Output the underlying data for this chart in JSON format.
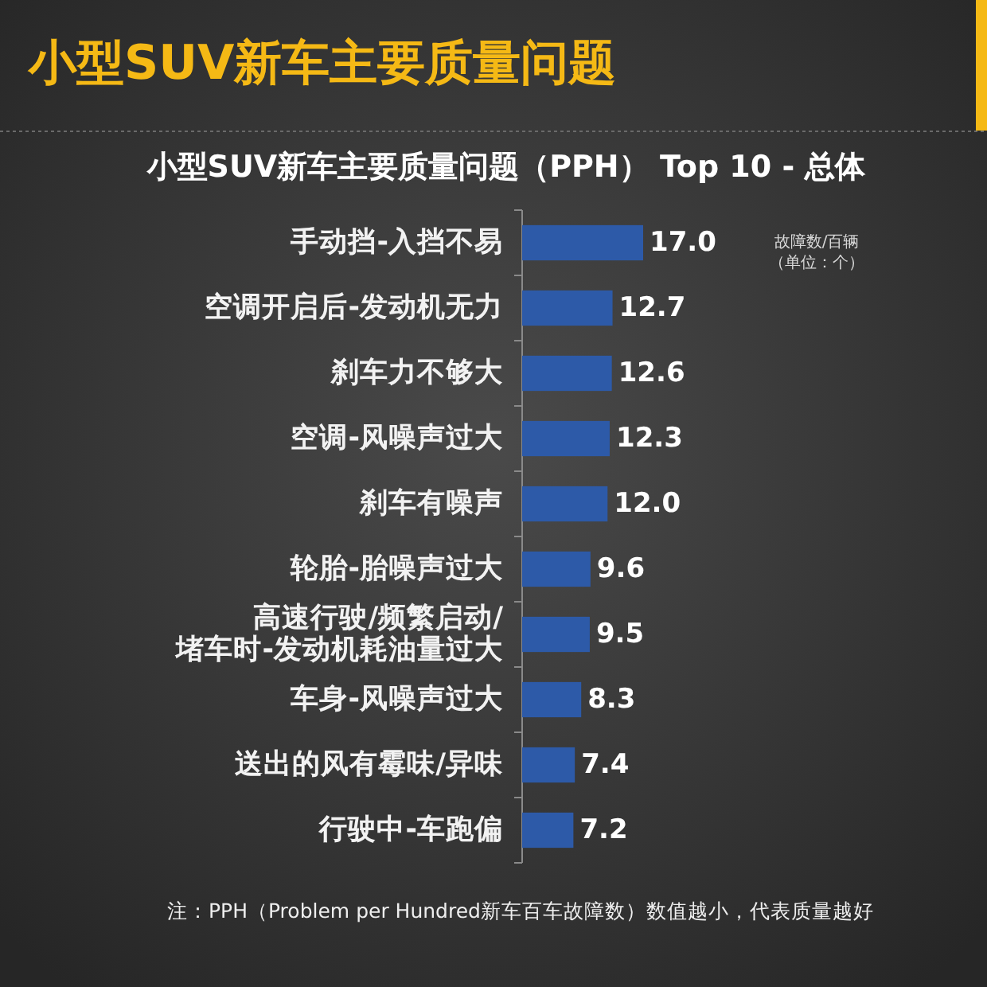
{
  "chart_data": {
    "type": "bar",
    "orientation": "horizontal",
    "title": "小型SUV新车主要质量问题",
    "subtitle": "小型SUV新车主要质量问题（PPH） Top 10 - 总体",
    "categories": [
      "手动挡-入挡不易",
      "空调开启后-发动机无力",
      "刹车力不够大",
      "空调-风噪声过大",
      "刹车有噪声",
      "轮胎-胎噪声过大",
      "高速行驶/频繁启动/堵车时-发动机耗油量过大",
      "车身-风噪声过大",
      "送出的风有霉味/异味",
      "行驶中-车跑偏"
    ],
    "values": [
      17.0,
      12.7,
      12.6,
      12.3,
      12.0,
      9.6,
      9.5,
      8.3,
      7.4,
      7.2
    ],
    "value_labels": [
      "17.0",
      "12.7",
      "12.6",
      "12.3",
      "12.0",
      "9.6",
      "9.5",
      "8.3",
      "7.4",
      "7.2"
    ],
    "color": "#2d5aa8",
    "annotations": [
      "故障数/百辆",
      "（单位：个）",
      "注：PPH（Problem per Hundred新车百车故障数）数值越小，代表质量越好"
    ]
  }
}
